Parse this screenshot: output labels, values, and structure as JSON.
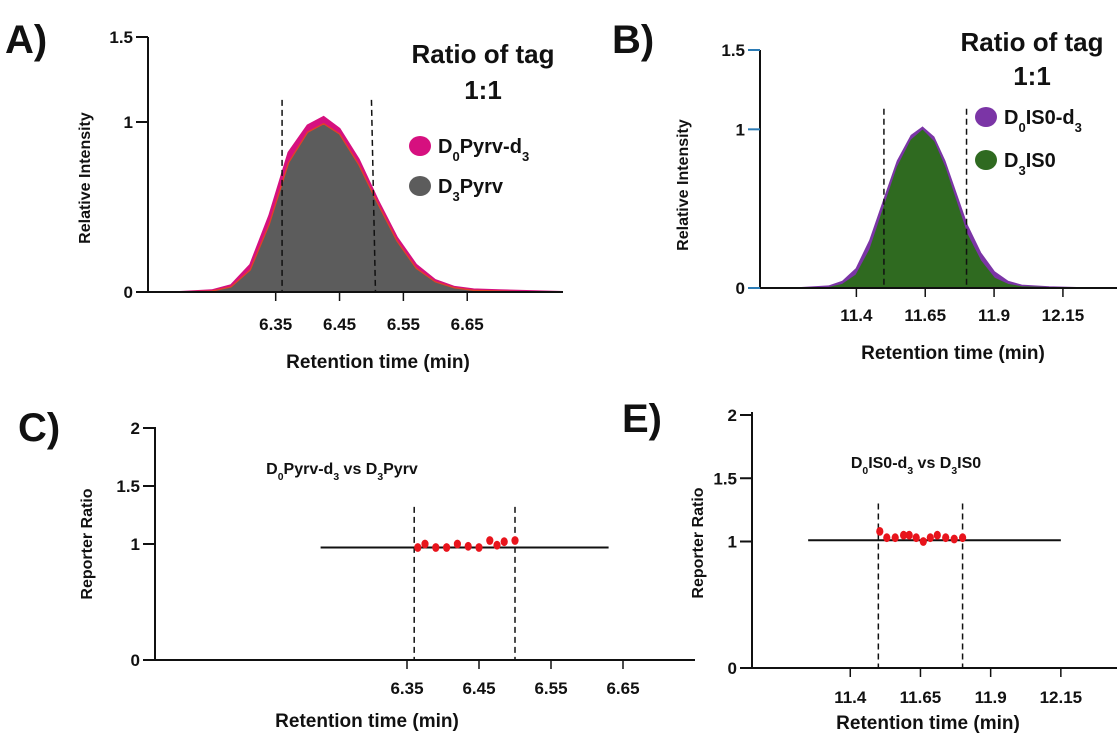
{
  "colors": {
    "magenta": "#d6107f",
    "dark_gray": "#5c5c5c",
    "red_outline": "#e0402a",
    "purple": "#7b35a6",
    "green": "#2f6a20",
    "dot_red": "#e8141c",
    "axis": "#111111",
    "tick_blue": "#2b7bb5"
  },
  "chart_data": [
    {
      "id": "A",
      "panel_label": "A)",
      "type": "area",
      "xlabel": "Retention time (min)",
      "ylabel": "Relative Intensity",
      "xlim": [
        6.15,
        6.8
      ],
      "ylim": [
        0,
        1.5
      ],
      "xticks": [
        {
          "v": 6.35,
          "label": "6.35"
        },
        {
          "v": 6.45,
          "label": "6.45"
        },
        {
          "v": 6.55,
          "label": "6.55"
        },
        {
          "v": 6.65,
          "label": "6.65"
        }
      ],
      "yticks": [
        {
          "v": 0,
          "label": "0"
        },
        {
          "v": 1,
          "label": "1"
        },
        {
          "v": 1.5,
          "label": "1.5"
        }
      ],
      "legend_title": "Ratio of tag",
      "legend_subtitle": "1:1",
      "legend_position": "top-right",
      "vlines": [
        6.36,
        6.5
      ],
      "series": [
        {
          "name_parts": [
            {
              "t": "D"
            },
            {
              "t": "0",
              "sub": true
            },
            {
              "t": "Pyrv-d"
            },
            {
              "t": "3",
              "sub": true
            }
          ],
          "color": "#d6107f",
          "x": [
            6.15,
            6.2,
            6.25,
            6.28,
            6.31,
            6.34,
            6.37,
            6.4,
            6.425,
            6.45,
            6.48,
            6.51,
            6.54,
            6.57,
            6.6,
            6.63,
            6.66,
            6.7,
            6.75,
            6.8
          ],
          "y": [
            0.0,
            0.0,
            0.01,
            0.04,
            0.16,
            0.45,
            0.82,
            0.98,
            1.03,
            0.96,
            0.78,
            0.54,
            0.32,
            0.16,
            0.07,
            0.03,
            0.015,
            0.01,
            0.005,
            0.0
          ]
        },
        {
          "name_parts": [
            {
              "t": "D"
            },
            {
              "t": "3",
              "sub": true
            },
            {
              "t": "Pyrv"
            }
          ],
          "color": "#5c5c5c",
          "x": [
            6.15,
            6.2,
            6.25,
            6.28,
            6.31,
            6.34,
            6.37,
            6.4,
            6.425,
            6.45,
            6.48,
            6.51,
            6.54,
            6.57,
            6.6,
            6.63,
            6.66,
            6.7,
            6.75,
            6.8
          ],
          "y": [
            0.0,
            0.0,
            0.005,
            0.03,
            0.13,
            0.4,
            0.76,
            0.94,
            0.99,
            0.93,
            0.75,
            0.52,
            0.3,
            0.14,
            0.06,
            0.025,
            0.01,
            0.005,
            0.0,
            0.0
          ]
        }
      ]
    },
    {
      "id": "B",
      "panel_label": "B)",
      "type": "area",
      "xlabel": "Retention time (min)",
      "ylabel": "Relative Intensity",
      "xlim": [
        11.05,
        12.35
      ],
      "ylim": [
        0,
        1.5
      ],
      "xticks": [
        {
          "v": 11.4,
          "label": "11.4"
        },
        {
          "v": 11.65,
          "label": "11.65"
        },
        {
          "v": 11.9,
          "label": "11.9"
        },
        {
          "v": 12.15,
          "label": "12.15"
        }
      ],
      "yticks": [
        {
          "v": 0,
          "label": "0"
        },
        {
          "v": 1,
          "label": "1"
        },
        {
          "v": 1.5,
          "label": "1.5"
        }
      ],
      "legend_title": "Ratio of tag",
      "legend_subtitle": "1:1",
      "legend_position": "top-right",
      "vlines": [
        11.5,
        11.8
      ],
      "series": [
        {
          "name_parts": [
            {
              "t": "D"
            },
            {
              "t": "0",
              "sub": true
            },
            {
              "t": "IS0-d"
            },
            {
              "t": "3",
              "sub": true
            }
          ],
          "color": "#7b35a6",
          "x": [
            11.05,
            11.2,
            11.3,
            11.35,
            11.4,
            11.45,
            11.5,
            11.55,
            11.6,
            11.64,
            11.68,
            11.72,
            11.76,
            11.8,
            11.85,
            11.9,
            11.95,
            12.0,
            12.1,
            12.2,
            12.35
          ],
          "y": [
            0.0,
            0.0,
            0.01,
            0.04,
            0.12,
            0.3,
            0.55,
            0.8,
            0.96,
            1.01,
            0.95,
            0.8,
            0.6,
            0.4,
            0.22,
            0.1,
            0.04,
            0.015,
            0.005,
            0.0,
            0.0
          ]
        },
        {
          "name_parts": [
            {
              "t": "D"
            },
            {
              "t": "3",
              "sub": true
            },
            {
              "t": "IS0"
            }
          ],
          "color": "#2f6a20",
          "x": [
            11.05,
            11.2,
            11.3,
            11.35,
            11.4,
            11.45,
            11.5,
            11.55,
            11.6,
            11.64,
            11.68,
            11.72,
            11.76,
            11.8,
            11.85,
            11.9,
            11.95,
            12.0,
            12.1,
            12.2,
            12.35
          ],
          "y": [
            0.0,
            0.0,
            0.0,
            0.02,
            0.08,
            0.24,
            0.5,
            0.76,
            0.93,
            0.99,
            0.92,
            0.76,
            0.55,
            0.34,
            0.17,
            0.06,
            0.02,
            0.005,
            0.0,
            0.0,
            0.0
          ]
        }
      ]
    },
    {
      "id": "C",
      "panel_label": "C)",
      "type": "scatter",
      "xlabel": "Retention time (min)",
      "ylabel": "Reporter Ratio",
      "xlim": [
        6.0,
        6.75
      ],
      "ylim": [
        0,
        2
      ],
      "xticks": [
        {
          "v": 6.35,
          "label": "6.35"
        },
        {
          "v": 6.45,
          "label": "6.45"
        },
        {
          "v": 6.55,
          "label": "6.55"
        },
        {
          "v": 6.65,
          "label": "6.65"
        }
      ],
      "yticks": [
        {
          "v": 0,
          "label": "0"
        },
        {
          "v": 1,
          "label": "1"
        },
        {
          "v": 1.5,
          "label": "1.5"
        },
        {
          "v": 2,
          "label": "2"
        }
      ],
      "title_parts": [
        {
          "t": "D"
        },
        {
          "t": "0",
          "sub": true
        },
        {
          "t": "Pyrv-d"
        },
        {
          "t": "3",
          "sub": true
        },
        {
          "t": " vs D"
        },
        {
          "t": "3",
          "sub": true
        },
        {
          "t": "Pyrv"
        }
      ],
      "vlines": [
        6.36,
        6.5
      ],
      "hline": {
        "y": 0.97,
        "x_from": 6.23,
        "x_to": 6.63
      },
      "points": {
        "x": [
          6.365,
          6.375,
          6.39,
          6.405,
          6.42,
          6.435,
          6.45,
          6.465,
          6.475,
          6.485,
          6.5
        ],
        "y": [
          0.97,
          1.0,
          0.97,
          0.97,
          1.0,
          0.98,
          0.97,
          1.03,
          0.99,
          1.02,
          1.03
        ]
      }
    },
    {
      "id": "E",
      "panel_label": "E)",
      "type": "scatter",
      "xlabel": "Retention time (min)",
      "ylabel": "Reporter Ratio",
      "xlim": [
        11.05,
        12.35
      ],
      "ylim": [
        0,
        2
      ],
      "xticks": [
        {
          "v": 11.4,
          "label": "11.4"
        },
        {
          "v": 11.65,
          "label": "11.65"
        },
        {
          "v": 11.9,
          "label": "11.9"
        },
        {
          "v": 12.15,
          "label": "12.15"
        }
      ],
      "yticks": [
        {
          "v": 0,
          "label": "0"
        },
        {
          "v": 1,
          "label": "1"
        },
        {
          "v": 1.5,
          "label": "1.5"
        },
        {
          "v": 2,
          "label": "2"
        }
      ],
      "title_parts": [
        {
          "t": "D"
        },
        {
          "t": "0",
          "sub": true
        },
        {
          "t": "IS0-d"
        },
        {
          "t": "3",
          "sub": true
        },
        {
          "t": "  vs D"
        },
        {
          "t": "3",
          "sub": true
        },
        {
          "t": "IS0"
        }
      ],
      "vlines": [
        11.5,
        11.8
      ],
      "hline": {
        "y": 1.01,
        "x_from": 11.25,
        "x_to": 12.15
      },
      "points": {
        "x": [
          11.505,
          11.53,
          11.56,
          11.59,
          11.61,
          11.635,
          11.66,
          11.685,
          11.71,
          11.74,
          11.77,
          11.8
        ],
        "y": [
          1.08,
          1.03,
          1.03,
          1.05,
          1.05,
          1.03,
          1.0,
          1.03,
          1.05,
          1.03,
          1.02,
          1.03
        ]
      }
    }
  ]
}
